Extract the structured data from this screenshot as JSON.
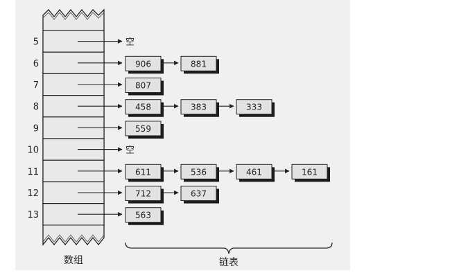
{
  "array": {
    "label": "数组",
    "rows": [
      {
        "index": "5",
        "chain": [],
        "empty_text": "空"
      },
      {
        "index": "6",
        "chain": [
          "906",
          "881"
        ]
      },
      {
        "index": "7",
        "chain": [
          "807"
        ]
      },
      {
        "index": "8",
        "chain": [
          "458",
          "383",
          "333"
        ]
      },
      {
        "index": "9",
        "chain": [
          "559"
        ]
      },
      {
        "index": "10",
        "chain": [],
        "empty_text": "空"
      },
      {
        "index": "11",
        "chain": [
          "611",
          "536",
          "461",
          "161"
        ]
      },
      {
        "index": "12",
        "chain": [
          "712",
          "637"
        ]
      },
      {
        "index": "13",
        "chain": [
          "563"
        ]
      }
    ]
  },
  "linked_list": {
    "label": "链表"
  },
  "colors": {
    "background": "#f0f0f0",
    "cell_fill": "#e9e9e9",
    "node_fill": "#e2e2e2",
    "node_shadow": "#1c1c1c",
    "ink": "#222222"
  }
}
